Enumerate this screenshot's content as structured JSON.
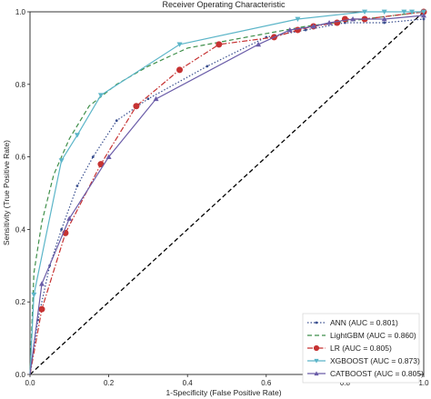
{
  "chart_data": {
    "type": "line",
    "title": "Receiver Operating Characteristic",
    "xlabel": "1-Specificity (False Positive Rate)",
    "ylabel": "Sensitivity (True Positive Rate)",
    "xlim": [
      0,
      1
    ],
    "ylim": [
      0,
      1
    ],
    "xticks": [
      "0.0",
      "0.2",
      "0.4",
      "0.6",
      "0.8",
      "1.0"
    ],
    "yticks": [
      "0.0",
      "0.2",
      "0.4",
      "0.6",
      "0.8",
      "1.0"
    ],
    "grid": false,
    "legend_position": "bottom-right",
    "series": [
      {
        "name": "ANN (AUC = 0.801)",
        "color": "#3a4f8f",
        "dash": "dot",
        "marker": "point",
        "x": [
          0,
          0.02,
          0.05,
          0.08,
          0.12,
          0.16,
          0.22,
          0.3,
          0.45,
          0.6,
          0.7,
          0.8,
          0.9,
          1.0
        ],
        "y": [
          0,
          0.15,
          0.3,
          0.4,
          0.52,
          0.6,
          0.7,
          0.76,
          0.85,
          0.93,
          0.95,
          0.97,
          0.97,
          0.98
        ]
      },
      {
        "name": "LightGBM (AUC = 0.860)",
        "color": "#3f8f4a",
        "dash": "dash",
        "marker": "none",
        "x": [
          0,
          0.01,
          0.03,
          0.06,
          0.1,
          0.15,
          0.22,
          0.3,
          0.4,
          0.55,
          0.7,
          0.85,
          1.0
        ],
        "y": [
          0,
          0.28,
          0.42,
          0.55,
          0.65,
          0.74,
          0.8,
          0.85,
          0.9,
          0.93,
          0.96,
          0.98,
          1.0
        ]
      },
      {
        "name": "LR (AUC = 0.805)",
        "color": "#c63232",
        "dash": "dashdot",
        "marker": "circle",
        "x": [
          0,
          0.03,
          0.09,
          0.18,
          0.27,
          0.38,
          0.48,
          0.62,
          0.68,
          0.72,
          0.78,
          0.8,
          0.85,
          1.0
        ],
        "y": [
          0,
          0.18,
          0.39,
          0.58,
          0.74,
          0.84,
          0.91,
          0.93,
          0.95,
          0.96,
          0.97,
          0.98,
          0.98,
          1.0
        ]
      },
      {
        "name": "XGBOOST (AUC = 0.873)",
        "color": "#5bb5c8",
        "dash": "solid",
        "marker": "triangle-down",
        "x": [
          0,
          0.01,
          0.08,
          0.12,
          0.18,
          0.38,
          0.68,
          0.85,
          0.9,
          0.95,
          0.97,
          1.0
        ],
        "y": [
          0,
          0.22,
          0.59,
          0.66,
          0.77,
          0.91,
          0.98,
          1.0,
          1.0,
          1.0,
          1.0,
          1.0
        ]
      },
      {
        "name": "CATBOOST (AUC = 0.805)",
        "color": "#6a5ca8",
        "dash": "solid",
        "marker": "triangle-up",
        "x": [
          0,
          0.03,
          0.1,
          0.2,
          0.32,
          0.58,
          0.66,
          0.72,
          0.76,
          0.82,
          0.9,
          1.0
        ],
        "y": [
          0,
          0.25,
          0.43,
          0.6,
          0.76,
          0.91,
          0.95,
          0.96,
          0.97,
          0.98,
          0.98,
          0.99
        ]
      }
    ],
    "reference_line": {
      "color": "#000000",
      "dash": "dash",
      "x": [
        0,
        1
      ],
      "y": [
        0,
        1
      ]
    }
  }
}
